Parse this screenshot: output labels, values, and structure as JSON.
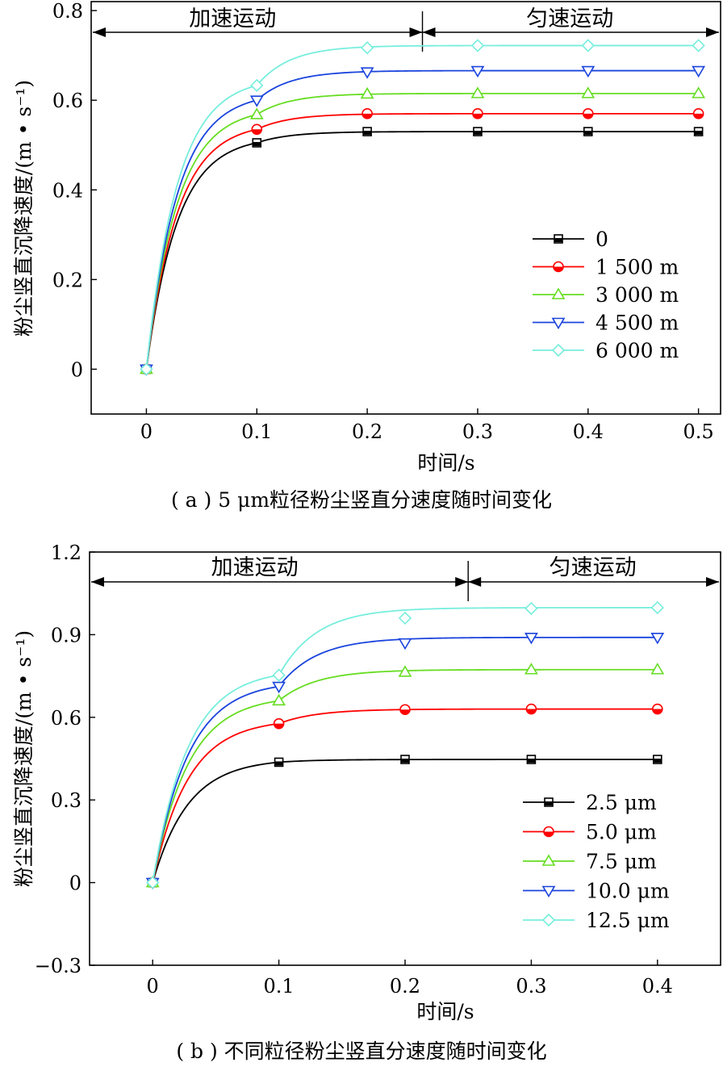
{
  "chart_data": [
    {
      "type": "line",
      "caption": "( a ) 5 μm粒径粉尘竖直分速度随时间变化",
      "xlabel": "时间/s",
      "ylabel": "粉尘竖直沉降速度/(m • s⁻¹)",
      "xlim": [
        -0.05,
        0.52
      ],
      "ylim": [
        -0.1,
        0.82
      ],
      "xticks": [
        0,
        0.1,
        0.2,
        0.3,
        0.4,
        0.5
      ],
      "xtick_labels": [
        "0",
        "0.1",
        "0.2",
        "0.3",
        "0.4",
        "0.5"
      ],
      "yticks": [
        0,
        0.2,
        0.4,
        0.6,
        0.8
      ],
      "ytick_labels": [
        "0",
        "0.2",
        "0.4",
        "0.6",
        "0.8"
      ],
      "phase_split": 0.25,
      "phase_labels": [
        "加速运动",
        "匀速运动"
      ],
      "legend_position": "right",
      "x": [
        0,
        0.1,
        0.2,
        0.3,
        0.4,
        0.5
      ],
      "series": [
        {
          "name": "0",
          "color": "#000000",
          "marker": "square",
          "values": [
            0,
            0.505,
            0.53,
            0.53,
            0.53,
            0.53
          ]
        },
        {
          "name": "1 500 m",
          "color": "#ff0000",
          "marker": "circle-half",
          "values": [
            0,
            0.535,
            0.57,
            0.57,
            0.57,
            0.57
          ]
        },
        {
          "name": "3 000 m",
          "color": "#66dd22",
          "marker": "triangle-up",
          "values": [
            0,
            0.568,
            0.614,
            0.615,
            0.615,
            0.615
          ]
        },
        {
          "name": "4 500 m",
          "color": "#1a44dd",
          "marker": "triangle-down",
          "values": [
            0,
            0.6,
            0.663,
            0.666,
            0.666,
            0.666
          ]
        },
        {
          "name": "6 000 m",
          "color": "#77eedd",
          "marker": "diamond",
          "values": [
            0,
            0.633,
            0.717,
            0.722,
            0.722,
            0.722
          ]
        }
      ]
    },
    {
      "type": "line",
      "caption": "( b ) 不同粒径粉尘竖直分速度随时间变化",
      "xlabel": "时间/s",
      "ylabel": "粉尘竖直沉降速度/(m • s⁻¹)",
      "xlim": [
        -0.05,
        0.45
      ],
      "ylim": [
        -0.3,
        1.2
      ],
      "xticks": [
        0,
        0.1,
        0.2,
        0.3,
        0.4
      ],
      "xtick_labels": [
        "0",
        "0.1",
        "0.2",
        "0.3",
        "0.4"
      ],
      "yticks": [
        -0.3,
        0,
        0.3,
        0.6,
        0.9,
        1.2
      ],
      "ytick_labels": [
        "−0.3",
        "0",
        "0.3",
        "0.6",
        "0.9",
        "1.2"
      ],
      "phase_split": 0.25,
      "phase_labels": [
        "加速运动",
        "匀速运动"
      ],
      "legend_position": "right",
      "x": [
        0,
        0.1,
        0.2,
        0.3,
        0.4
      ],
      "series": [
        {
          "name": "2.5 μm",
          "color": "#000000",
          "marker": "square",
          "values": [
            0,
            0.437,
            0.447,
            0.447,
            0.447
          ]
        },
        {
          "name": "5.0 μm",
          "color": "#ff0000",
          "marker": "circle-half",
          "values": [
            0,
            0.577,
            0.628,
            0.63,
            0.63
          ]
        },
        {
          "name": "7.5 μm",
          "color": "#66dd22",
          "marker": "triangle-up",
          "values": [
            0,
            0.66,
            0.764,
            0.773,
            0.773
          ]
        },
        {
          "name": "10.0 μm",
          "color": "#1a44dd",
          "marker": "triangle-down",
          "values": [
            0,
            0.712,
            0.87,
            0.89,
            0.89
          ]
        },
        {
          "name": "12.5 μm",
          "color": "#77eedd",
          "marker": "diamond",
          "values": [
            0,
            0.753,
            0.96,
            0.995,
            0.998
          ]
        }
      ]
    }
  ]
}
